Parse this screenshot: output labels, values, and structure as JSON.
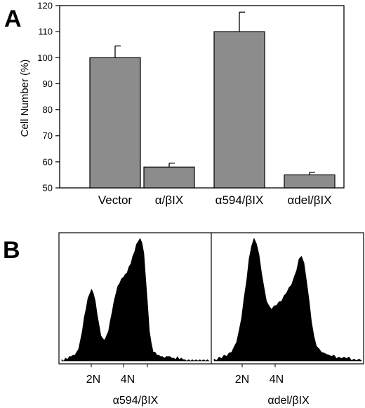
{
  "panel_a_letter": "A",
  "panel_b_letter": "B",
  "chart_data": [
    {
      "type": "bar",
      "ylabel": "Cell Number (%)",
      "ylim": [
        50,
        120
      ],
      "yticks": [
        "50",
        "60",
        "70",
        "80",
        "90",
        "100",
        "110",
        "120"
      ],
      "categories": [
        "Vector",
        "α/βIX",
        "α594/βIX",
        "αdel/βIX"
      ],
      "values": [
        100,
        58,
        110,
        55
      ],
      "errors": [
        4.5,
        1.5,
        7.5,
        1.0
      ],
      "bar_color": "#8c8c8c",
      "grid": false
    },
    {
      "type": "area",
      "title": "α594/βIX",
      "peak_labels": [
        "2N",
        "4N"
      ],
      "y": [
        1,
        1,
        2,
        2,
        3,
        4,
        4,
        5,
        6,
        9,
        14,
        21,
        29,
        36,
        42,
        46,
        48,
        46,
        40,
        32,
        24,
        18,
        15,
        15,
        17,
        21,
        27,
        34,
        40,
        46,
        50,
        53,
        55,
        57,
        58,
        60,
        63,
        66,
        70,
        74,
        78,
        81,
        82,
        80,
        72,
        56,
        38,
        21,
        12,
        7,
        6,
        5,
        4,
        4,
        3,
        3,
        3,
        4,
        3,
        3,
        2,
        2,
        3,
        2,
        2,
        2,
        1,
        1,
        1,
        1,
        1,
        1,
        1,
        1,
        1,
        1,
        1,
        1,
        1,
        1
      ],
      "fill_color": "#000000"
    },
    {
      "type": "area",
      "title": "αdel/βIX",
      "peak_labels": [
        "2N",
        "4N"
      ],
      "y": [
        1,
        1,
        2,
        2,
        3,
        3,
        4,
        5,
        7,
        10,
        15,
        22,
        31,
        40,
        50,
        57,
        60,
        58,
        52,
        44,
        36,
        30,
        27,
        26,
        27,
        28,
        29,
        30,
        32,
        34,
        36,
        38,
        41,
        45,
        50,
        52,
        48,
        40,
        30,
        20,
        12,
        8,
        6,
        5,
        4,
        4,
        3,
        3,
        3,
        2,
        2,
        2,
        2,
        2,
        2,
        1,
        1,
        1,
        1,
        1
      ],
      "fill_color": "#000000"
    }
  ]
}
